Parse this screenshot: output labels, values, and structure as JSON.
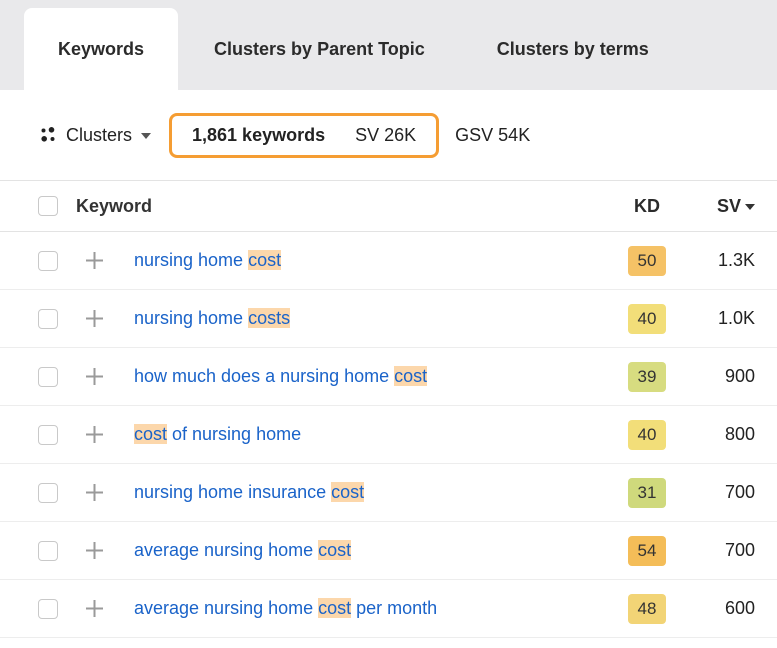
{
  "tabs": [
    {
      "label": "Keywords",
      "active": true
    },
    {
      "label": "Clusters by Parent Topic",
      "active": false
    },
    {
      "label": "Clusters by terms",
      "active": false
    }
  ],
  "toolbar": {
    "clusters_label": "Clusters",
    "stats_box": {
      "keywords_count": "1,861 keywords",
      "sv": "SV 26K"
    },
    "gsv": "GSV 54K",
    "accent_color": "#f59d33"
  },
  "table": {
    "headers": {
      "keyword": "Keyword",
      "kd": "KD",
      "sv": "SV"
    },
    "highlight_color": "#fcd7ab",
    "rows": [
      {
        "keyword_parts": [
          {
            "text": "nursing home "
          },
          {
            "text": "cost",
            "highlight": true
          }
        ],
        "kd": "50",
        "kd_color": "#f5c266",
        "sv": "1.3K"
      },
      {
        "keyword_parts": [
          {
            "text": "nursing home "
          },
          {
            "text": "costs",
            "highlight": true
          }
        ],
        "kd": "40",
        "kd_color": "#f2de79",
        "sv": "1.0K"
      },
      {
        "keyword_parts": [
          {
            "text": "how much does a nursing home "
          },
          {
            "text": "cost",
            "highlight": true
          }
        ],
        "kd": "39",
        "kd_color": "#d7dc80",
        "sv": "900"
      },
      {
        "keyword_parts": [
          {
            "text": "cost",
            "highlight": true
          },
          {
            "text": " of nursing home"
          }
        ],
        "kd": "40",
        "kd_color": "#f2de79",
        "sv": "800"
      },
      {
        "keyword_parts": [
          {
            "text": "nursing home insurance "
          },
          {
            "text": "cost",
            "highlight": true
          }
        ],
        "kd": "31",
        "kd_color": "#cfd97c",
        "sv": "700"
      },
      {
        "keyword_parts": [
          {
            "text": "average nursing home "
          },
          {
            "text": "cost",
            "highlight": true
          }
        ],
        "kd": "54",
        "kd_color": "#f4bd58",
        "sv": "700"
      },
      {
        "keyword_parts": [
          {
            "text": "average nursing home "
          },
          {
            "text": "cost",
            "highlight": true
          },
          {
            "text": " per month"
          }
        ],
        "kd": "48",
        "kd_color": "#f2d476",
        "sv": "600"
      }
    ]
  }
}
